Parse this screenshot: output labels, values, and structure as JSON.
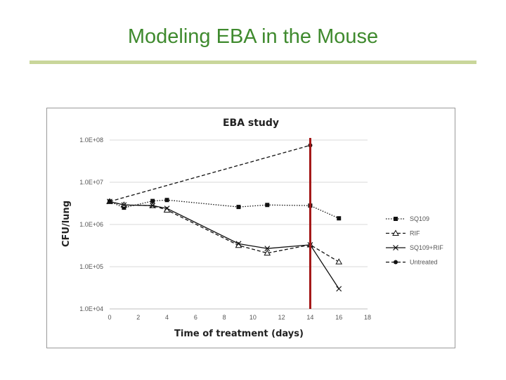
{
  "slide": {
    "title": "Modeling EBA in the Mouse"
  },
  "chart_data": {
    "type": "line",
    "title": "EBA study",
    "xlabel": "Time of treatment (days)",
    "ylabel": "CFU/lung",
    "y_scale": "log",
    "xlim": [
      0,
      18
    ],
    "ylim": [
      10000,
      100000000
    ],
    "x_ticks": [
      0,
      2,
      4,
      6,
      8,
      10,
      12,
      14,
      16,
      18
    ],
    "x_tick_labels": [
      "0",
      "2",
      "4",
      "6",
      "8",
      "10",
      "12",
      "14",
      "16",
      "18"
    ],
    "y_ticks": [
      10000,
      100000,
      1000000,
      10000000,
      100000000
    ],
    "y_tick_labels": [
      "1.0E+04",
      "1.0E+05",
      "1.0E+06",
      "1.0E+07",
      "1.0E+08"
    ],
    "grid": "horizontal",
    "legend_position": "right",
    "reference_line": {
      "x": 14,
      "color": "#a31515"
    },
    "series": [
      {
        "name": "SQ109",
        "line_style": "dotted",
        "marker": "square",
        "x": [
          0,
          1,
          3,
          4,
          9,
          11,
          14,
          16
        ],
        "y": [
          3500000,
          2500000,
          3600000,
          3800000,
          2600000,
          2900000,
          2800000,
          1400000
        ]
      },
      {
        "name": "RIF",
        "line_style": "dashed",
        "marker": "triangle",
        "x": [
          0,
          1,
          3,
          4,
          9,
          11,
          14,
          16
        ],
        "y": [
          3500000,
          2900000,
          2800000,
          2200000,
          320000,
          210000,
          330000,
          130000
        ]
      },
      {
        "name": "SQ109+RIF",
        "line_style": "solid",
        "marker": "x",
        "x": [
          0,
          1,
          3,
          4,
          9,
          11,
          14,
          16
        ],
        "y": [
          3500000,
          2900000,
          2800000,
          2400000,
          350000,
          270000,
          330000,
          30000
        ]
      },
      {
        "name": "Untreated",
        "line_style": "dashed",
        "marker": "circle",
        "x": [
          0,
          14
        ],
        "y": [
          3500000,
          75000000
        ]
      }
    ]
  }
}
